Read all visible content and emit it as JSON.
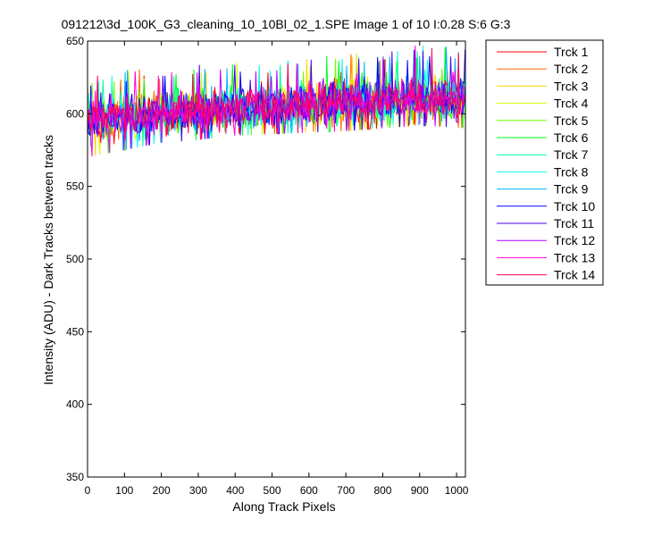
{
  "chart_data": {
    "type": "line",
    "title": "091212\\3d_100K_G3_cleaning_10_10Bl_02_1.SPE  Image 1 of 10  I:0.28  S:6  G:3",
    "xlabel": "Along Track Pixels",
    "ylabel": "Intensity (ADU) - Dark Tracks between tracks",
    "xlim": [
      0,
      1024
    ],
    "ylim": [
      350,
      650
    ],
    "xticks": [
      "0",
      "100",
      "200",
      "300",
      "400",
      "500",
      "600",
      "700",
      "800",
      "900",
      "1000"
    ],
    "yticks": [
      "350",
      "400",
      "450",
      "500",
      "550",
      "600",
      "650"
    ],
    "grid": false,
    "legend_position": "outside-right",
    "trend": {
      "x": [
        0,
        100,
        200,
        300,
        400,
        500,
        600,
        700,
        800,
        900,
        1024
      ],
      "mean": [
        596,
        598,
        600,
        601,
        603,
        605,
        606,
        608,
        609,
        610,
        611
      ],
      "min": [
        570,
        575,
        580,
        582,
        585,
        586,
        587,
        588,
        590,
        592,
        590
      ],
      "max": [
        625,
        630,
        632,
        635,
        635,
        636,
        638,
        645,
        642,
        648,
        645
      ]
    },
    "series": [
      {
        "name": "Trck 1",
        "color": "#ff0000"
      },
      {
        "name": "Trck 2",
        "color": "#ff6a00"
      },
      {
        "name": "Trck 3",
        "color": "#ffd400"
      },
      {
        "name": "Trck 4",
        "color": "#d4ff00"
      },
      {
        "name": "Trck 5",
        "color": "#6aff00"
      },
      {
        "name": "Trck 6",
        "color": "#00ff1a"
      },
      {
        "name": "Trck 7",
        "color": "#00ff9a"
      },
      {
        "name": "Trck 8",
        "color": "#00ffe6"
      },
      {
        "name": "Trck 9",
        "color": "#00b4ff"
      },
      {
        "name": "Trck 10",
        "color": "#0000ff"
      },
      {
        "name": "Trck 11",
        "color": "#4a00e6"
      },
      {
        "name": "Trck 12",
        "color": "#b400ff"
      },
      {
        "name": "Trck 13",
        "color": "#ff00d4"
      },
      {
        "name": "Trck 14",
        "color": "#ff005a"
      }
    ]
  }
}
